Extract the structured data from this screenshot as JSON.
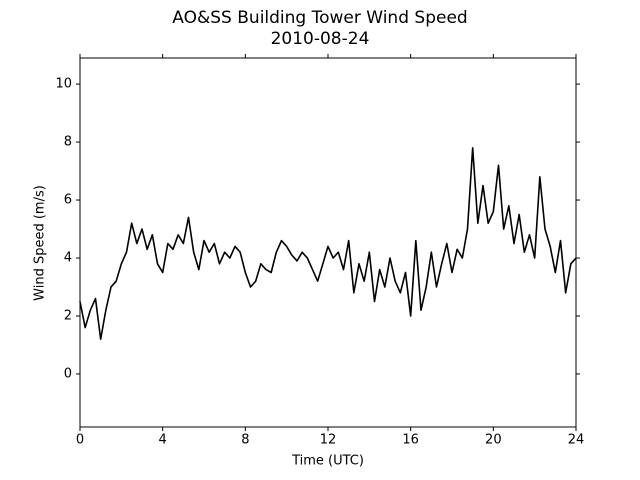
{
  "chart_data": {
    "type": "line",
    "title": "AO&SS Building Tower Wind Speed",
    "subtitle": "2010-08-24",
    "x_label": "Time (UTC)",
    "y_label": "Wind Speed (m/s)",
    "x": [
      0,
      0.25,
      0.5,
      0.75,
      1,
      1.25,
      1.5,
      1.75,
      2,
      2.25,
      2.5,
      2.75,
      3,
      3.25,
      3.5,
      3.75,
      4,
      4.25,
      4.5,
      4.75,
      5,
      5.25,
      5.5,
      5.75,
      6,
      6.25,
      6.5,
      6.75,
      7,
      7.25,
      7.5,
      7.75,
      8,
      8.25,
      8.5,
      8.75,
      9,
      9.25,
      9.5,
      9.75,
      10,
      10.25,
      10.5,
      10.75,
      11,
      11.25,
      11.5,
      11.75,
      12,
      12.25,
      12.5,
      12.75,
      13,
      13.25,
      13.5,
      13.75,
      14,
      14.25,
      14.5,
      14.75,
      15,
      15.25,
      15.5,
      15.75,
      16,
      16.25,
      16.5,
      16.75,
      17,
      17.25,
      17.5,
      17.75,
      18,
      18.25,
      18.5,
      18.75,
      19,
      19.25,
      19.5,
      19.75,
      20,
      20.25,
      20.5,
      20.75,
      21,
      21.25,
      21.5,
      21.75,
      22,
      22.25,
      22.5,
      22.75,
      23,
      23.25,
      23.5,
      23.75,
      24
    ],
    "series": [
      {
        "name": "Wind Speed",
        "color": "#000000",
        "values": [
          2.5,
          1.6,
          2.2,
          2.6,
          1.2,
          2.2,
          3.0,
          3.2,
          3.8,
          4.2,
          5.2,
          4.5,
          5.0,
          4.3,
          4.8,
          3.8,
          3.5,
          4.5,
          4.3,
          4.8,
          4.5,
          5.4,
          4.2,
          3.6,
          4.6,
          4.2,
          4.5,
          3.8,
          4.2,
          4.0,
          4.4,
          4.2,
          3.5,
          3.0,
          3.2,
          3.8,
          3.6,
          3.5,
          4.2,
          4.6,
          4.4,
          4.1,
          3.9,
          4.2,
          4.0,
          3.6,
          3.2,
          3.8,
          4.4,
          4.0,
          4.2,
          3.6,
          4.6,
          2.8,
          3.8,
          3.2,
          4.2,
          2.5,
          3.6,
          3.0,
          4.0,
          3.2,
          2.8,
          3.5,
          2.0,
          4.6,
          2.2,
          3.0,
          4.2,
          3.0,
          3.8,
          4.5,
          3.5,
          4.3,
          4.0,
          5.0,
          7.8,
          5.2,
          6.5,
          5.2,
          5.6,
          7.2,
          5.0,
          5.8,
          4.5,
          5.5,
          4.2,
          4.8,
          4.0,
          6.8,
          5.0,
          4.4,
          3.5,
          4.6,
          2.8,
          3.8,
          4.0
        ]
      }
    ],
    "xlim": [
      0,
      24
    ],
    "xticks": [
      0,
      4,
      8,
      12,
      16,
      20,
      24
    ],
    "ylim": [
      -1.83,
      10.9
    ],
    "yticks": [
      0,
      2,
      4,
      6,
      8,
      10
    ],
    "grid": false
  }
}
